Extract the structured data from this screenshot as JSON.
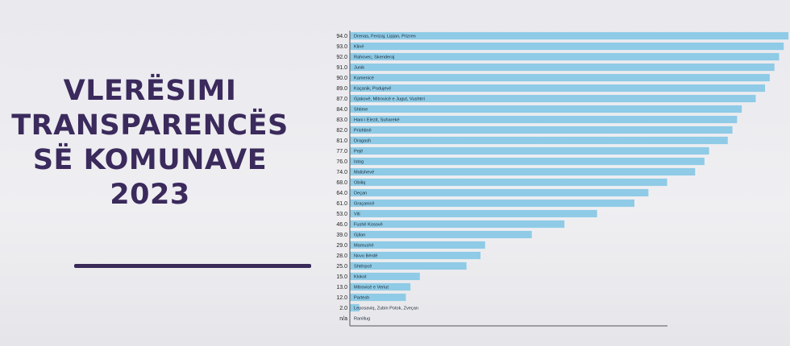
{
  "slide": {
    "title_lines": [
      "VLERËSIMI",
      "TRANSPARENCËS",
      "SË KOMUNAVE",
      "2023"
    ],
    "accent_color": "#3b2a5c"
  },
  "chart_data": {
    "type": "bar",
    "orientation": "horizontal",
    "bar_color": "#8fcbe6",
    "xlim": [
      0,
      100
    ],
    "categories": [
      "Drenas, Ferizaj, Lipjan, Prizren",
      "Klinë",
      "Rahovec, Skenderaj",
      "Junik",
      "Kamenicë",
      "Kaçanik, Podujevë",
      "Gjakovë, Mitrovicë e Jugut, Vushtrri",
      "Shtime",
      "Hani i Elezit, Suharekë",
      "Prishtinë",
      "Dragash",
      "Pejë",
      "Istog",
      "Malishevë",
      "Obiliq",
      "Deçan",
      "Graçanicë",
      "Viti",
      "Fushë Kosovë",
      "Gjilan",
      "Mamushë",
      "Novo Bërdë",
      "Shtërpcë",
      "Klokot",
      "Mitrovicë e Veriut",
      "Partesh",
      "Leposaviq, Zubin Potok, Zveçan",
      "Ranillug"
    ],
    "value_labels": [
      "94.0",
      "93.0",
      "92.0",
      "91.0",
      "90.0",
      "89.0",
      "87.0",
      "84.0",
      "83.0",
      "82.0",
      "81.0",
      "77.0",
      "76.0",
      "74.0",
      "68.0",
      "64.0",
      "61.0",
      "53.0",
      "46.0",
      "39.0",
      "29.0",
      "28.0",
      "25.0",
      "15.0",
      "13.0",
      "12.0",
      "2.0",
      "n/a"
    ],
    "values": [
      94,
      93,
      92,
      91,
      90,
      89,
      87,
      84,
      83,
      82,
      81,
      77,
      76,
      74,
      68,
      64,
      61,
      53,
      46,
      39,
      29,
      28,
      25,
      15,
      13,
      12,
      2,
      null
    ]
  }
}
